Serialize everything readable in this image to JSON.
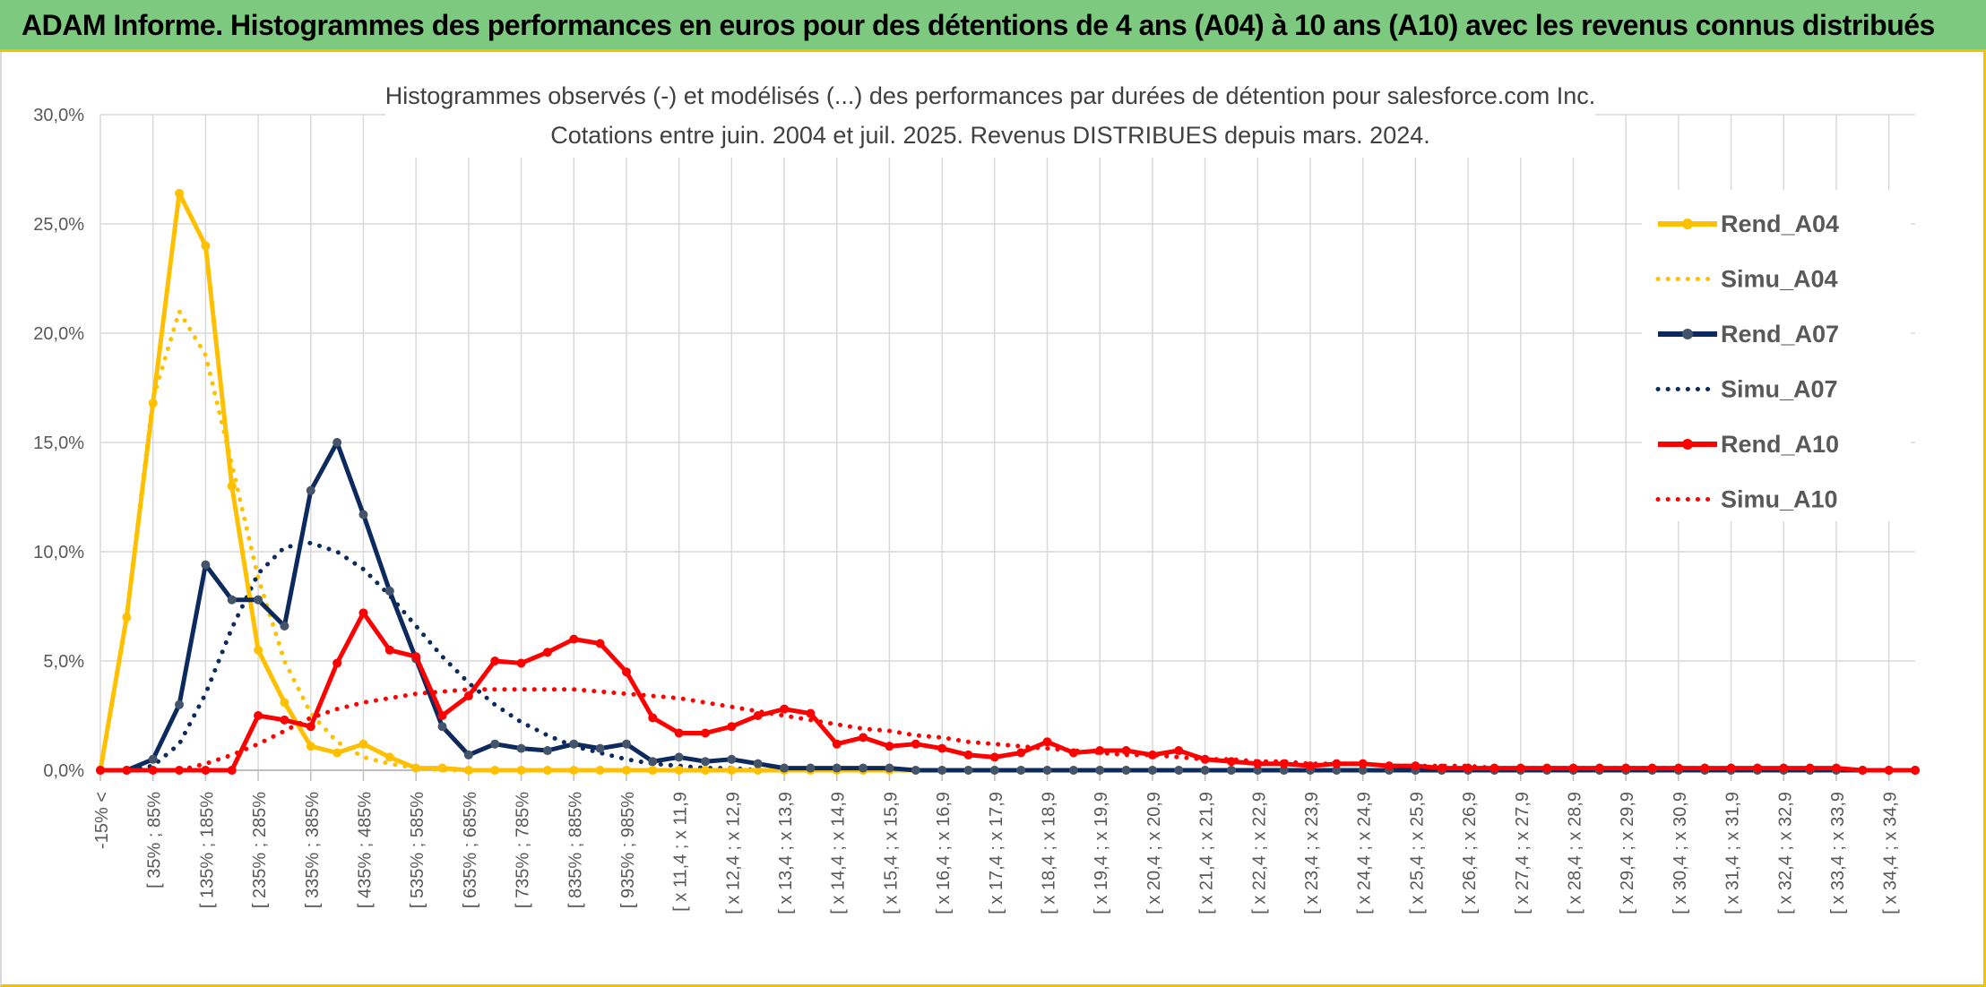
{
  "banner": {
    "title": "ADAM Informe. Histogrammes des performances en euros pour des détentions de 4 ans (A04) à 10 ans (A10) avec les revenus connus distribués"
  },
  "colors": {
    "banner_bg": "#7dc97f",
    "accent_border": "#f2c200",
    "A04": "#ffc000",
    "A07": "#0d2a5e",
    "A07_marker": "#44546a",
    "A10": "#ff0000",
    "grid": "#d9d9d9",
    "text": "#595959"
  },
  "chart_data": {
    "type": "line",
    "title": "Histogrammes observés (-) et modélisés (...) des performances par durées de détention pour salesforce.com Inc.",
    "subtitle": "Cotations entre juin. 2004 et juil. 2025. Revenus DISTRIBUES depuis mars. 2024.",
    "xlabel": "",
    "ylabel": "",
    "ylim": [
      0,
      0.3
    ],
    "yticks": [
      "0,0%",
      "5,0%",
      "10,0%",
      "15,0%",
      "20,0%",
      "25,0%",
      "30,0%"
    ],
    "grid": true,
    "legend_position": "right",
    "x_tick_labels": [
      "-15% <",
      "[ 35% ; 85%",
      "[ 135% ; 185%",
      "[ 235% ; 285%",
      "[ 335% ; 385%",
      "[ 435% ; 485%",
      "[ 535% ; 585%",
      "[ 635% ; 685%",
      "[ 735% ; 785%",
      "[ 835% ; 885%",
      "[ 935% ; 985%",
      "[ x 11,4 ; x 11,9",
      "[ x 12,4 ; x 12,9",
      "[ x 13,4 ; x 13,9",
      "[ x 14,4 ; x 14,9",
      "[ x 15,4 ; x 15,9",
      "[ x 16,4 ; x 16,9",
      "[ x 17,4 ; x 17,9",
      "[ x 18,4 ; x 18,9",
      "[ x 19,4 ; x 19,9",
      "[ x 20,4 ; x 20,9",
      "[ x 21,4 ; x 21,9",
      "[ x 22,4 ; x 22,9",
      "[ x 23,4 ; x 23,9",
      "[ x 24,4 ; x 24,9",
      "[ x 25,4 ; x 25,9",
      "[ x 26,4 ; x 26,9",
      "[ x 27,4 ; x 27,9",
      "[ x 28,4 ; x 28,9",
      "[ x 29,4 ; x 29,9",
      "[ x 30,4 ; x 30,9",
      "[ x 31,4 ; x 31,9",
      "[ x 32,4 ; x 32,9",
      "[ x 33,4 ; x 33,9",
      "[ x 34,4 ; x 34,9"
    ],
    "x_tick_label_every": 2,
    "bins": 70,
    "series": [
      {
        "name": "Rend_A04",
        "style": "solid",
        "color": "#ffc000",
        "values": [
          0,
          0.07,
          0.168,
          0.264,
          0.24,
          0.13,
          0.055,
          0.031,
          0.011,
          0.008,
          0.012,
          0.006,
          0.001,
          0.001,
          0,
          0,
          0,
          0,
          0,
          0,
          0,
          0,
          0,
          0,
          0,
          0,
          0,
          0,
          0,
          0,
          0,
          0,
          0,
          0,
          0,
          0,
          0,
          0,
          0,
          0,
          0,
          0,
          0,
          0,
          0,
          0,
          0,
          0,
          0,
          0,
          0,
          0,
          0,
          0,
          0,
          0,
          0,
          0,
          0,
          0,
          0,
          0,
          0,
          0,
          0,
          0,
          0,
          0,
          0,
          0
        ]
      },
      {
        "name": "Simu_A04",
        "style": "dotted",
        "color": "#ffc000",
        "values": [
          0,
          0.07,
          0.17,
          0.21,
          0.19,
          0.14,
          0.088,
          0.05,
          0.026,
          0.013,
          0.006,
          0.003,
          0.001,
          0,
          0,
          0,
          0,
          0,
          0,
          0,
          0,
          0,
          0,
          0,
          0,
          0,
          0,
          0,
          0,
          0,
          0,
          0,
          0,
          0,
          0,
          0,
          0,
          0,
          0,
          0,
          0,
          0,
          0,
          0,
          0,
          0,
          0,
          0,
          0,
          0,
          0,
          0,
          0,
          0,
          0,
          0,
          0,
          0,
          0,
          0,
          0,
          0,
          0,
          0,
          0,
          0,
          0,
          0,
          0,
          0
        ]
      },
      {
        "name": "Rend_A07",
        "style": "solid",
        "color": "#0d2a5e",
        "values": [
          0,
          0,
          0.005,
          0.03,
          0.094,
          0.078,
          0.078,
          0.066,
          0.128,
          0.15,
          0.117,
          0.082,
          0.051,
          0.02,
          0.007,
          0.012,
          0.01,
          0.009,
          0.012,
          0.01,
          0.012,
          0.004,
          0.006,
          0.004,
          0.005,
          0.003,
          0.001,
          0.001,
          0.001,
          0.001,
          0.001,
          0,
          0,
          0,
          0,
          0,
          0,
          0,
          0,
          0,
          0,
          0,
          0,
          0,
          0,
          0,
          0,
          0,
          0,
          0,
          0,
          0,
          0,
          0,
          0,
          0,
          0,
          0,
          0,
          0,
          0,
          0,
          0,
          0,
          0,
          0,
          0,
          0,
          0,
          0
        ]
      },
      {
        "name": "Simu_A07",
        "style": "dotted",
        "color": "#0d2a5e",
        "values": [
          0,
          0,
          0.002,
          0.012,
          0.035,
          0.065,
          0.09,
          0.102,
          0.104,
          0.1,
          0.092,
          0.08,
          0.066,
          0.052,
          0.04,
          0.03,
          0.022,
          0.016,
          0.011,
          0.008,
          0.005,
          0.003,
          0.002,
          0.001,
          0.001,
          0,
          0,
          0,
          0,
          0,
          0,
          0,
          0,
          0,
          0,
          0,
          0,
          0,
          0,
          0,
          0,
          0,
          0,
          0,
          0,
          0,
          0,
          0,
          0,
          0,
          0,
          0,
          0,
          0,
          0,
          0,
          0,
          0,
          0,
          0,
          0,
          0,
          0,
          0,
          0,
          0,
          0,
          0,
          0,
          0
        ]
      },
      {
        "name": "Rend_A10",
        "style": "solid",
        "color": "#ff0000",
        "values": [
          0,
          0,
          0,
          0,
          0,
          0,
          0.025,
          0.023,
          0.02,
          0.049,
          0.072,
          0.055,
          0.052,
          0.025,
          0.034,
          0.05,
          0.049,
          0.054,
          0.06,
          0.058,
          0.045,
          0.024,
          0.017,
          0.017,
          0.02,
          0.025,
          0.028,
          0.026,
          0.012,
          0.015,
          0.011,
          0.012,
          0.01,
          0.007,
          0.006,
          0.008,
          0.013,
          0.008,
          0.009,
          0.009,
          0.007,
          0.009,
          0.005,
          0.004,
          0.003,
          0.003,
          0.002,
          0.003,
          0.003,
          0.002,
          0.002,
          0.001,
          0.001,
          0.001,
          0.001,
          0.001,
          0.001,
          0.001,
          0.001,
          0.001,
          0.001,
          0.001,
          0.001,
          0.001,
          0.001,
          0.001,
          0.001,
          0,
          0,
          0
        ]
      },
      {
        "name": "Simu_A10",
        "style": "dotted",
        "color": "#ff0000",
        "values": [
          0,
          0,
          0,
          0,
          0.003,
          0.007,
          0.012,
          0.018,
          0.024,
          0.028,
          0.031,
          0.033,
          0.035,
          0.036,
          0.037,
          0.037,
          0.037,
          0.037,
          0.037,
          0.036,
          0.035,
          0.034,
          0.033,
          0.031,
          0.029,
          0.027,
          0.025,
          0.023,
          0.021,
          0.019,
          0.018,
          0.016,
          0.015,
          0.013,
          0.012,
          0.011,
          0.01,
          0.009,
          0.008,
          0.007,
          0.007,
          0.006,
          0.005,
          0.005,
          0.004,
          0.004,
          0.003,
          0.003,
          0.003,
          0.002,
          0.002,
          0.002,
          0.002,
          0.001,
          0.001,
          0.001,
          0.001,
          0.001,
          0.001,
          0.001,
          0.001,
          0.001,
          0,
          0,
          0,
          0,
          0,
          0,
          0,
          0
        ]
      }
    ]
  }
}
